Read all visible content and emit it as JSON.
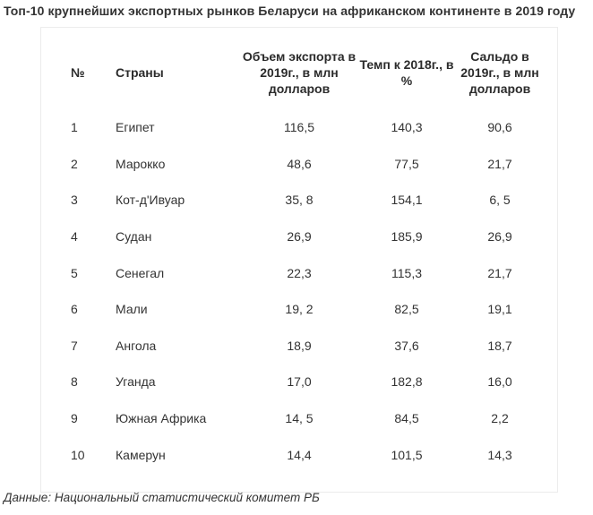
{
  "title": "Топ-10 крупнейших экспортных рынков Беларуси на африканском континенте в 2019 году",
  "table": {
    "headers": {
      "num": "№",
      "country": "Страны",
      "export": "Объем экспорта в 2019г., в млн долларов",
      "rate": "Темп к 2018г., в %",
      "balance": "Сальдо в 2019г., в млн долларов"
    },
    "rows": [
      {
        "num": "1",
        "country": "Египет",
        "export": "116,5",
        "rate": "140,3",
        "balance": "90,6"
      },
      {
        "num": "2",
        "country": "Марокко",
        "export": "48,6",
        "rate": "77,5",
        "balance": "21,7"
      },
      {
        "num": "3",
        "country": "Кот-д'Ивуар",
        "export": "35, 8",
        "rate": "154,1",
        "balance": "6, 5"
      },
      {
        "num": "4",
        "country": "Судан",
        "export": "26,9",
        "rate": "185,9",
        "balance": "26,9"
      },
      {
        "num": "5",
        "country": "Сенегал",
        "export": "22,3",
        "rate": "115,3",
        "balance": "21,7"
      },
      {
        "num": "6",
        "country": "Мали",
        "export": "19, 2",
        "rate": "82,5",
        "balance": "19,1"
      },
      {
        "num": "7",
        "country": "Ангола",
        "export": "18,9",
        "rate": "37,6",
        "balance": "18,7"
      },
      {
        "num": "8",
        "country": "Уганда",
        "export": "17,0",
        "rate": "182,8",
        "balance": "16,0"
      },
      {
        "num": "9",
        "country": "Южная Африка",
        "export": "14, 5",
        "rate": "84,5",
        "balance": "2,2"
      },
      {
        "num": "10",
        "country": "Камерун",
        "export": "14,4",
        "rate": "101,5",
        "balance": "14,3"
      }
    ]
  },
  "source": "Данные: Национальный статистический комитет РБ"
}
